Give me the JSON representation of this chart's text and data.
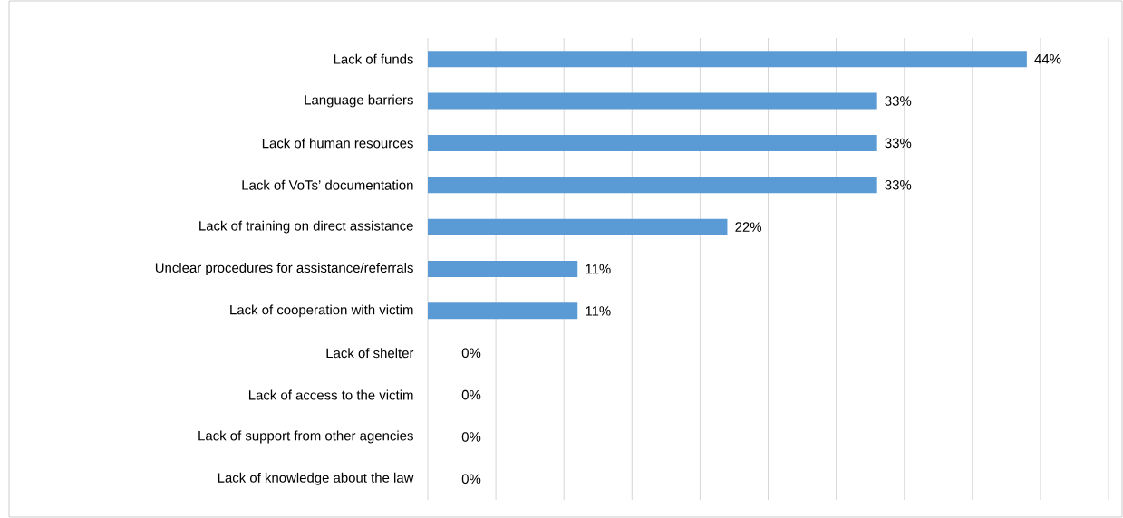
{
  "chart_data": {
    "type": "bar",
    "orientation": "horizontal",
    "categories": [
      "Lack of funds",
      "Language barriers",
      "Lack of human resources",
      "Lack of VoTs’ documentation",
      "Lack of training on direct assistance",
      "Unclear procedures for assistance/referrals",
      "Lack of cooperation with victim",
      "Lack of shelter",
      "Lack of access to the victim",
      "Lack of support from other agencies",
      "Lack of knowledge about the law"
    ],
    "values": [
      44,
      33,
      33,
      33,
      22,
      11,
      11,
      0,
      0,
      0,
      0
    ],
    "value_labels": [
      "44%",
      "33%",
      "33%",
      "33%",
      "22%",
      "11%",
      "11%",
      "0%",
      "0%",
      "0%",
      "0%"
    ],
    "color": "#5b9bd5",
    "xlim": [
      0,
      50
    ],
    "xticks": [
      {
        "value": 0,
        "label": null
      },
      {
        "value": 5,
        "label": null
      },
      {
        "value": 10,
        "label": null
      },
      {
        "value": 15,
        "label": null
      },
      {
        "value": 20,
        "label": null
      },
      {
        "value": 25,
        "label": null
      },
      {
        "value": 30,
        "label": null
      },
      {
        "value": 35,
        "label": null
      },
      {
        "value": 40,
        "label": null
      },
      {
        "value": 45,
        "label": null
      },
      {
        "value": 50,
        "label": null
      }
    ],
    "grid": "x",
    "tick_labels": "y"
  }
}
